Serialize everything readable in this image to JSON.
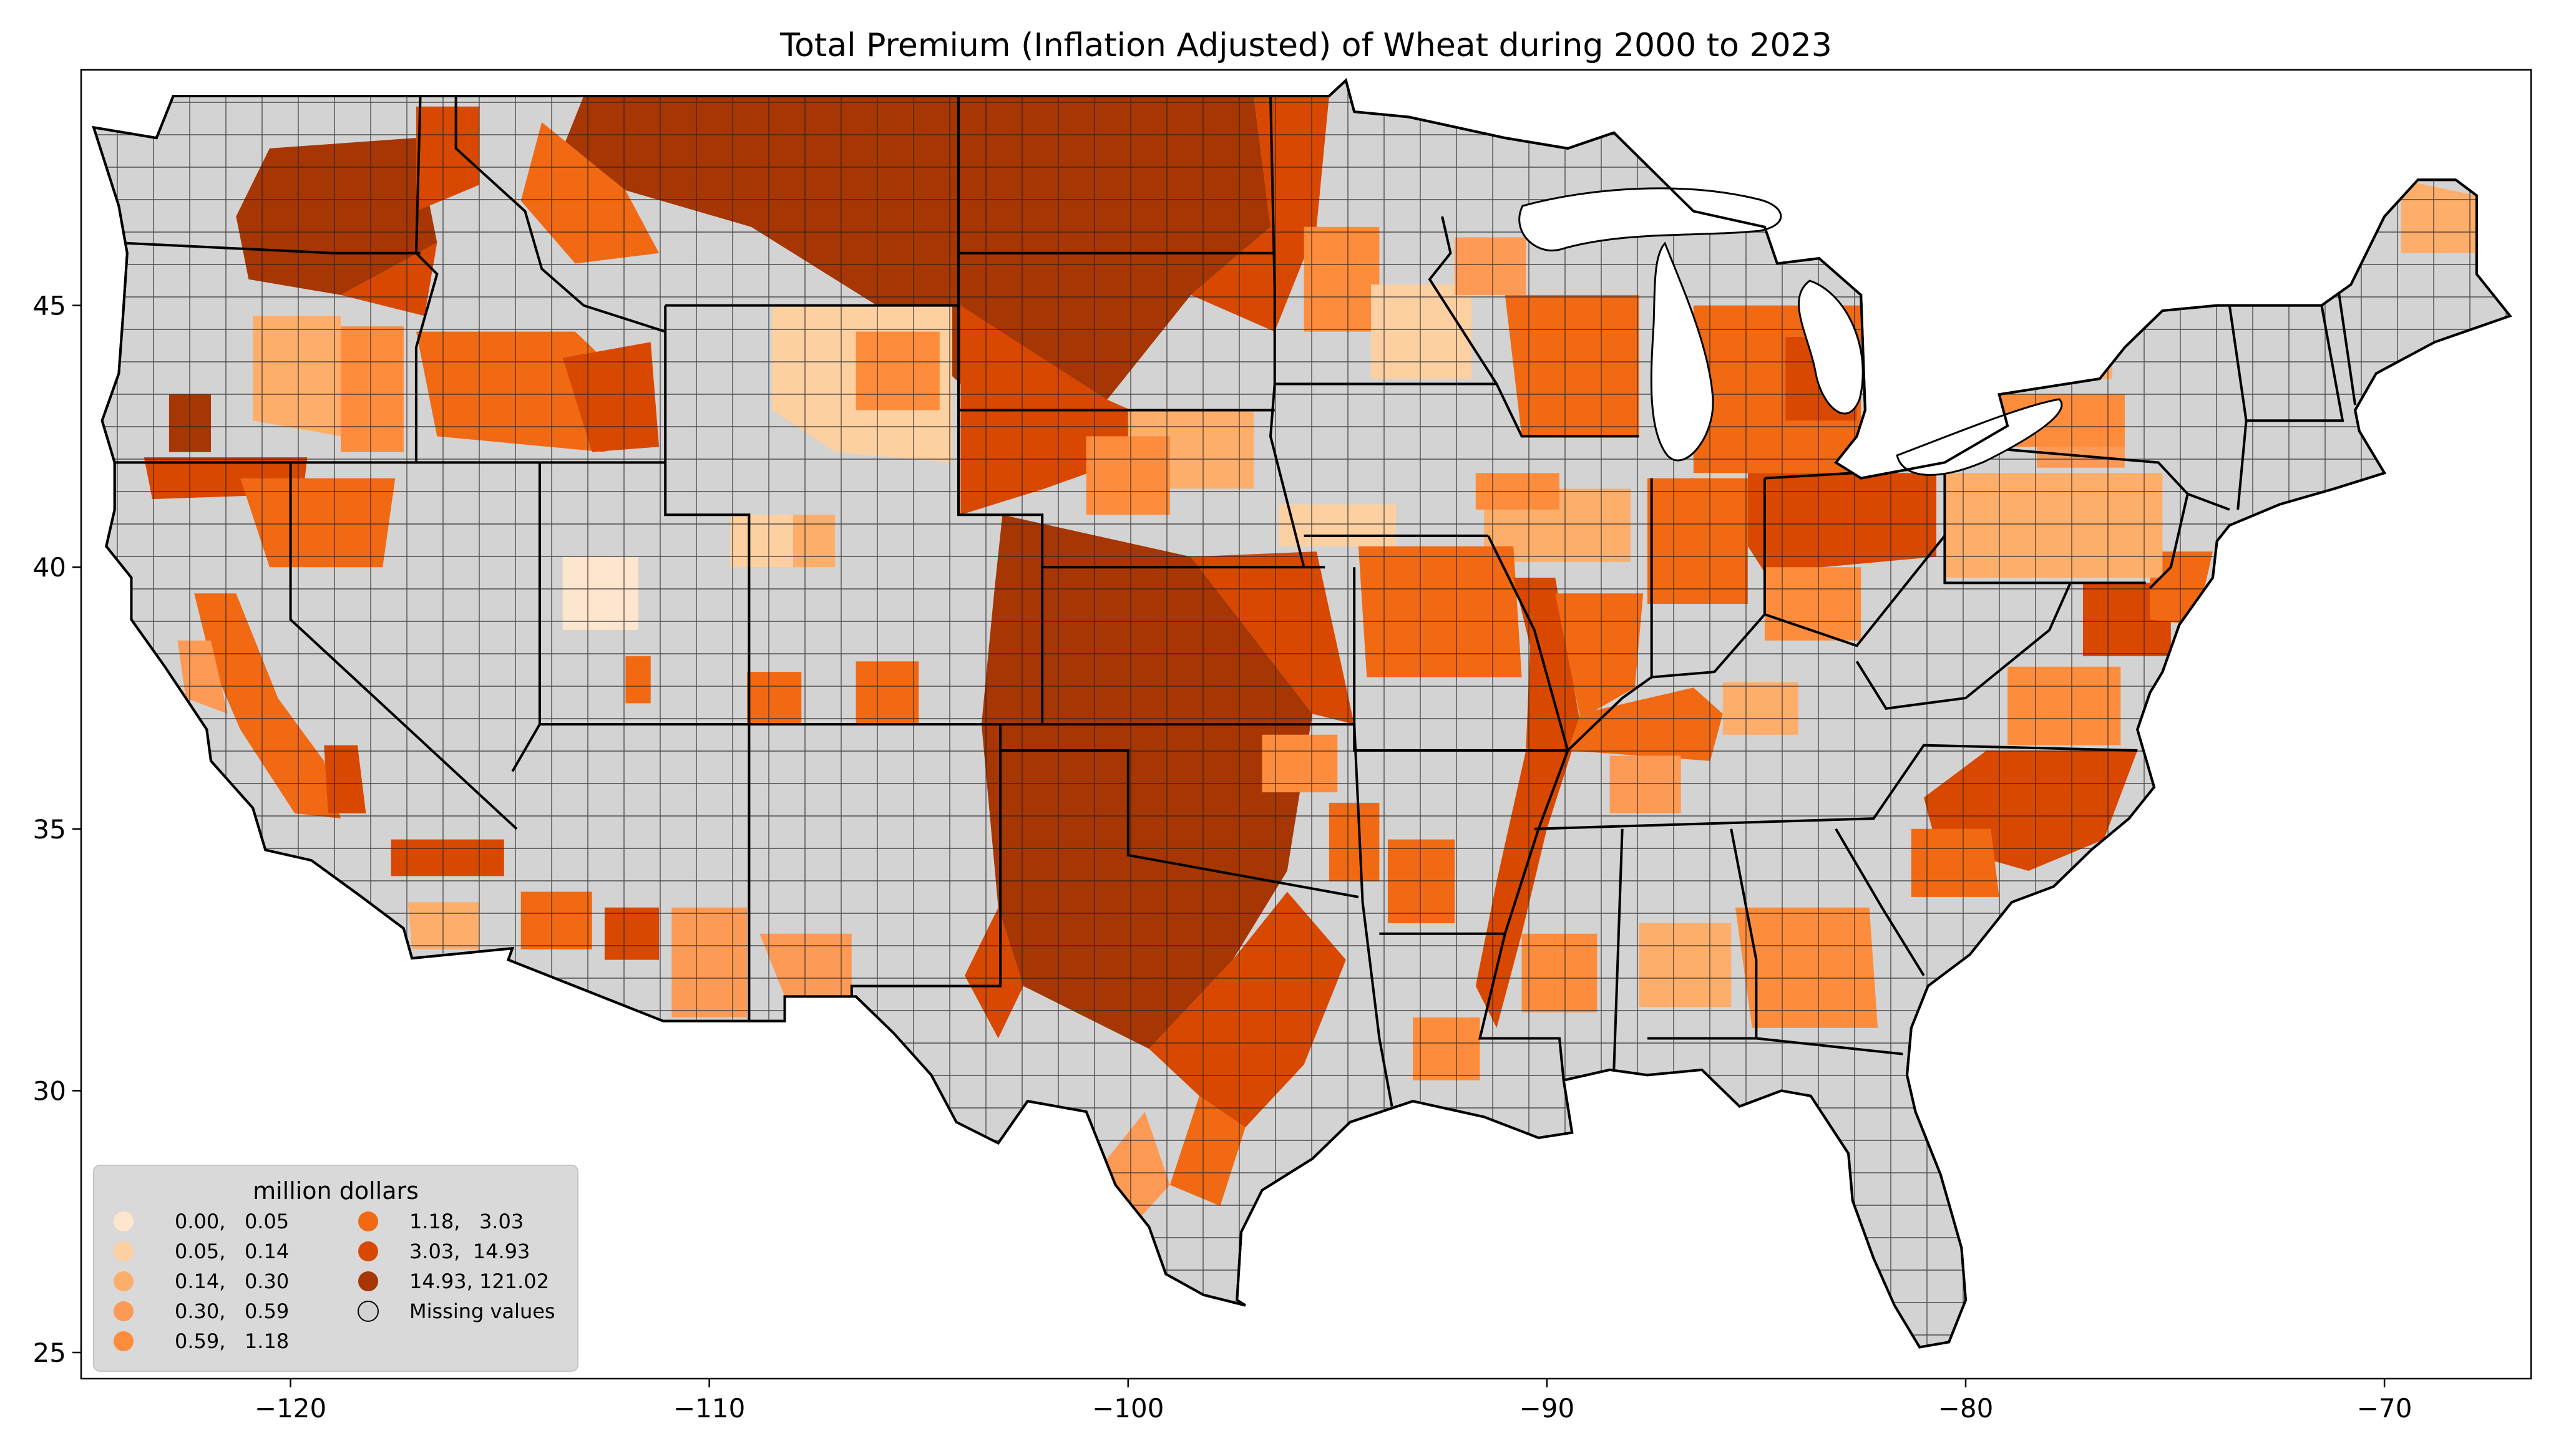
{
  "title": "Total  Premium  (Inflation Adjusted) of Wheat during 2000 to 2023",
  "map": {
    "type": "choropleth",
    "region": "Contiguous United States (county level)",
    "lon_range": [
      -125,
      -66.5
    ],
    "lat_range": [
      24.5,
      49.5
    ],
    "x_ticks": [
      -120,
      -110,
      -100,
      -90,
      -80,
      -70
    ],
    "y_ticks": [
      25,
      30,
      35,
      40,
      45
    ],
    "x_tick_labels": [
      "−120",
      "−110",
      "−100",
      "−90",
      "−80",
      "−70"
    ],
    "y_tick_labels": [
      "25",
      "30",
      "35",
      "40",
      "45"
    ],
    "missing_color": "#d3d3d3",
    "boundary_color": "#000000"
  },
  "legend": {
    "title": "million dollars",
    "placement": "lower-left",
    "bins": [
      {
        "label": "0.00,   0.05",
        "color": "#fee6ce"
      },
      {
        "label": "0.05,   0.14",
        "color": "#fdd0a2"
      },
      {
        "label": "0.14,   0.30",
        "color": "#fdae6b"
      },
      {
        "label": "0.30,   0.59",
        "color": "#fd9a56"
      },
      {
        "label": "0.59,   1.18",
        "color": "#fd8d3c"
      },
      {
        "label": "1.18,   3.03",
        "color": "#f16913"
      },
      {
        "label": "3.03,  14.93",
        "color": "#d94801"
      },
      {
        "label": "14.93, 121.02",
        "color": "#a63603"
      },
      {
        "label": "Missing values",
        "color": "#d3d3d3"
      }
    ]
  }
}
